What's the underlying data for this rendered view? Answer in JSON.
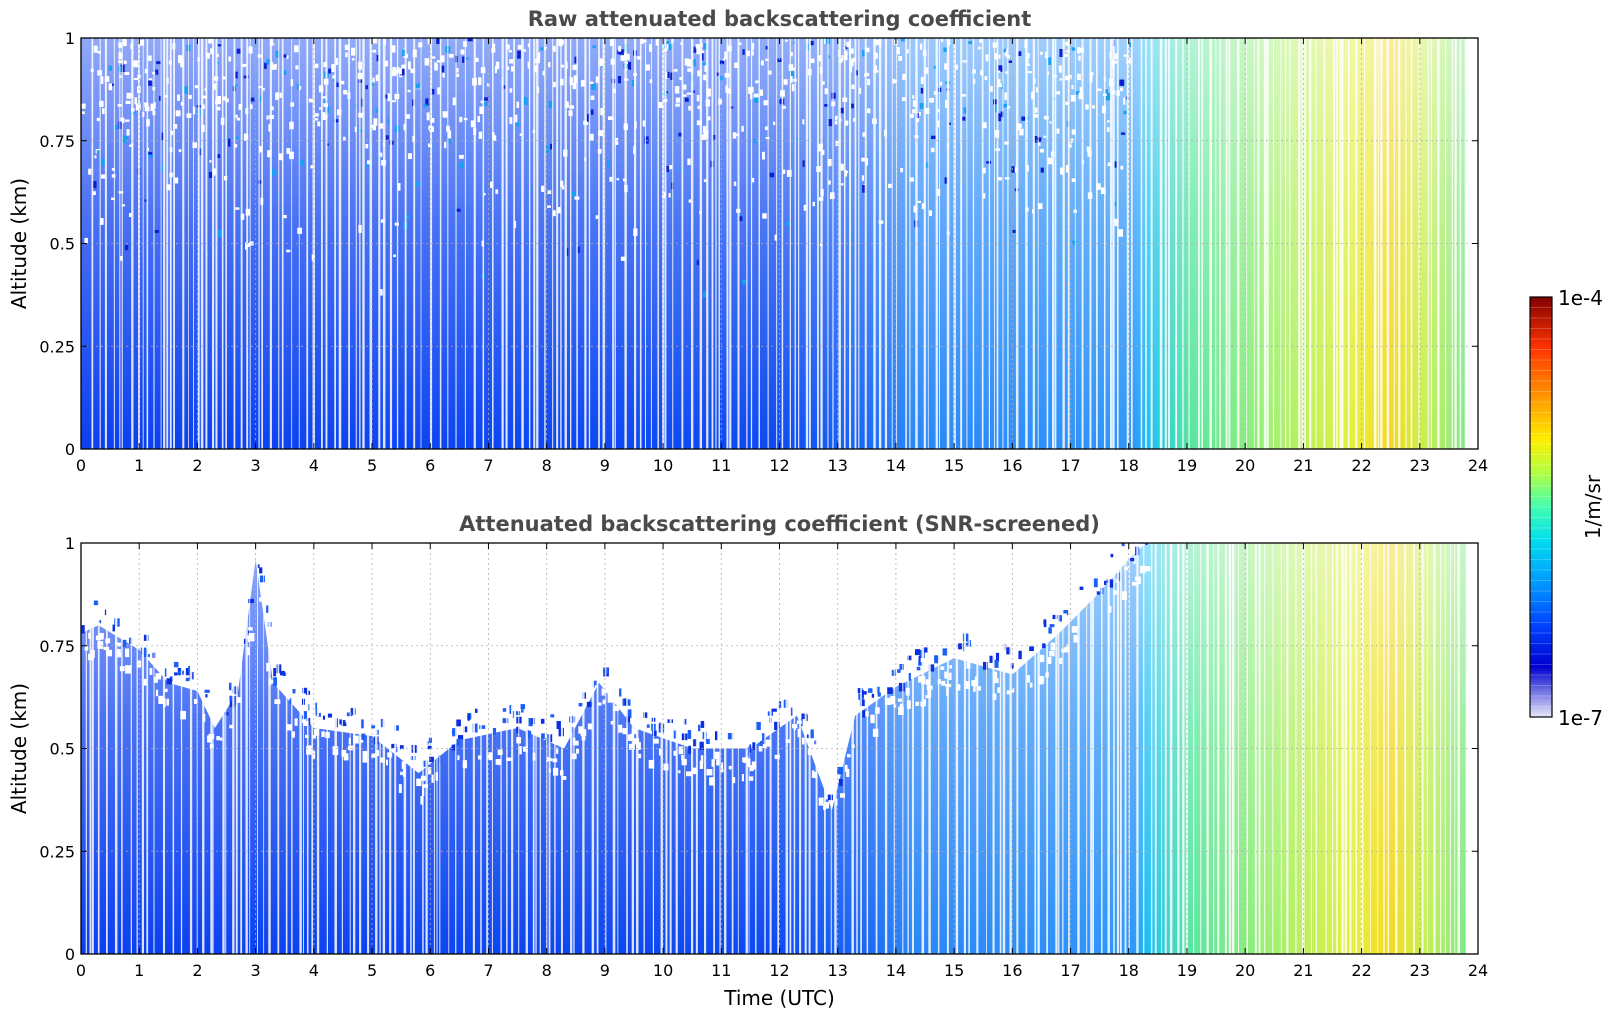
{
  "chart_data": [
    {
      "type": "heatmap",
      "title": "Raw attenuated backscattering coefficient",
      "xlabel": "",
      "ylabel": "Altitude (km)",
      "xlim": [
        0,
        24
      ],
      "ylim": [
        0,
        1
      ],
      "x_ticks": [
        "0",
        "1",
        "2",
        "3",
        "4",
        "5",
        "6",
        "7",
        "8",
        "9",
        "10",
        "11",
        "12",
        "13",
        "14",
        "15",
        "16",
        "17",
        "18",
        "19",
        "20",
        "21",
        "22",
        "23",
        "24"
      ],
      "y_ticks": [
        "0",
        "0.25",
        "0.5",
        "0.75",
        "1"
      ],
      "grid": true,
      "data_end_time": 23.8,
      "color_regime": [
        {
          "from": 0,
          "to": 13.5,
          "level": "blue",
          "noise_above_altitude": 0.55
        },
        {
          "from": 13.5,
          "to": 18.3,
          "level": "light-blue"
        },
        {
          "from": 18.3,
          "to": 19.2,
          "level": "cyan"
        },
        {
          "from": 19.2,
          "to": 23.8,
          "level": "green-yellow"
        }
      ]
    },
    {
      "type": "heatmap",
      "title": "Attenuated backscattering coefficient (SNR-screened)",
      "xlabel": "Time (UTC)",
      "ylabel": "Altitude (km)",
      "xlim": [
        0,
        24
      ],
      "ylim": [
        0,
        1
      ],
      "x_ticks": [
        "0",
        "1",
        "2",
        "3",
        "4",
        "5",
        "6",
        "7",
        "8",
        "9",
        "10",
        "11",
        "12",
        "13",
        "14",
        "15",
        "16",
        "17",
        "18",
        "19",
        "20",
        "21",
        "22",
        "23",
        "24"
      ],
      "y_ticks": [
        "0",
        "0.25",
        "0.5",
        "0.75",
        "1"
      ],
      "grid": true,
      "data_end_time": 23.8,
      "signal_top_profile": {
        "time": [
          0,
          0.3,
          1,
          1.5,
          2,
          2.3,
          2.7,
          3,
          3.3,
          4,
          5,
          5.8,
          6.5,
          7.5,
          8.3,
          8.9,
          9.5,
          10.5,
          11.5,
          12.3,
          12.9,
          13.3,
          14,
          15,
          16,
          16.8,
          17.5,
          18,
          18.3,
          24
        ],
        "altitude": [
          0.78,
          0.8,
          0.74,
          0.66,
          0.64,
          0.55,
          0.64,
          0.96,
          0.66,
          0.55,
          0.53,
          0.44,
          0.52,
          0.55,
          0.5,
          0.66,
          0.55,
          0.5,
          0.5,
          0.58,
          0.35,
          0.58,
          0.65,
          0.72,
          0.68,
          0.78,
          0.88,
          0.96,
          1.0,
          1.0
        ]
      }
    }
  ],
  "colorbar": {
    "label": "1/m/sr",
    "max_label": "1e-4",
    "min_label": "1e-7",
    "colormap": "jet",
    "colors": [
      "#e8e8f8",
      "#0000d0",
      "#0044ff",
      "#0099ff",
      "#00ddee",
      "#44ffb0",
      "#b0ff44",
      "#ffee00",
      "#ff9900",
      "#ff3300",
      "#800000"
    ]
  }
}
